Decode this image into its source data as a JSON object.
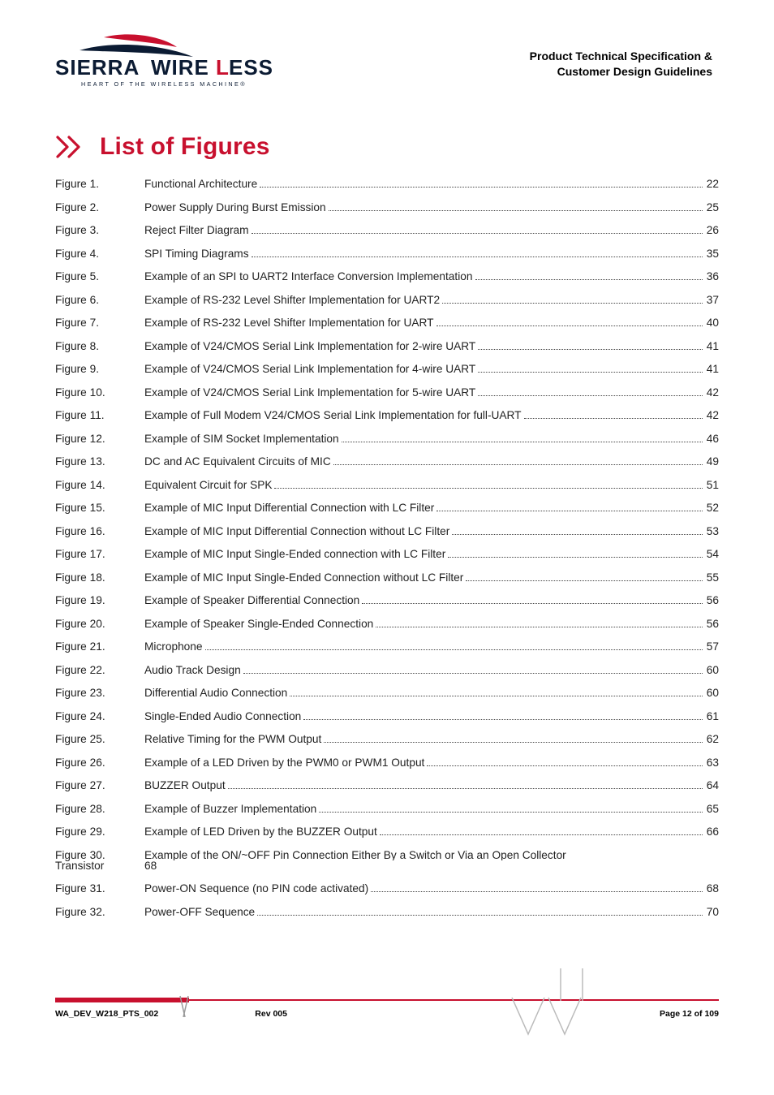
{
  "colors": {
    "accent": "#c8102e",
    "text": "#222222",
    "bg": "#ffffff"
  },
  "header": {
    "brand_top": "SIERRA WIRELESS",
    "brand_tag": "HEART OF THE WIRELESS MACHINE®",
    "right_line1": "Product Technical Specification &",
    "right_line2": "Customer Design Guidelines"
  },
  "title": "List of Figures",
  "figures": [
    {
      "label": "Figure 1.",
      "desc": "Functional Architecture",
      "page": "22"
    },
    {
      "label": "Figure 2.",
      "desc": "Power Supply During Burst Emission",
      "page": "25"
    },
    {
      "label": "Figure 3.",
      "desc": "Reject Filter Diagram",
      "page": "26"
    },
    {
      "label": "Figure 4.",
      "desc": "SPI Timing Diagrams",
      "page": "35"
    },
    {
      "label": "Figure 5.",
      "desc": "Example of an SPI to UART2 Interface Conversion Implementation",
      "page": "36"
    },
    {
      "label": "Figure 6.",
      "desc": "Example of RS-232 Level Shifter Implementation for UART2",
      "page": "37"
    },
    {
      "label": "Figure 7.",
      "desc": "Example of RS-232 Level Shifter Implementation for UART",
      "page": "40"
    },
    {
      "label": "Figure 8.",
      "desc": "Example of V24/CMOS Serial Link Implementation for 2-wire UART",
      "page": "41"
    },
    {
      "label": "Figure 9.",
      "desc": "Example of V24/CMOS Serial Link Implementation for 4-wire UART",
      "page": "41"
    },
    {
      "label": "Figure 10.",
      "desc": "Example of V24/CMOS Serial Link Implementation for 5-wire UART",
      "page": "42"
    },
    {
      "label": "Figure 11.",
      "desc": "Example of Full Modem V24/CMOS Serial Link Implementation for full-UART",
      "page": "42"
    },
    {
      "label": "Figure 12.",
      "desc": "Example of SIM Socket Implementation",
      "page": "46"
    },
    {
      "label": "Figure 13.",
      "desc": "DC and AC Equivalent Circuits of MIC",
      "page": "49"
    },
    {
      "label": "Figure 14.",
      "desc": "Equivalent Circuit for SPK",
      "page": "51"
    },
    {
      "label": "Figure 15.",
      "desc": "Example of MIC Input Differential Connection with LC Filter",
      "page": "52"
    },
    {
      "label": "Figure 16.",
      "desc": "Example of MIC Input Differential Connection without LC Filter",
      "page": "53"
    },
    {
      "label": "Figure 17.",
      "desc": "Example of MIC Input Single-Ended connection with LC Filter",
      "page": "54"
    },
    {
      "label": "Figure 18.",
      "desc": "Example of MIC Input Single-Ended Connection without LC Filter",
      "page": "55"
    },
    {
      "label": "Figure 19.",
      "desc": "Example of Speaker Differential Connection",
      "page": "56"
    },
    {
      "label": "Figure 20.",
      "desc": "Example of Speaker Single-Ended Connection",
      "page": "56"
    },
    {
      "label": "Figure 21.",
      "desc": "Microphone",
      "page": "57"
    },
    {
      "label": "Figure 22.",
      "desc": "Audio Track Design",
      "page": "60"
    },
    {
      "label": "Figure 23.",
      "desc": "Differential Audio Connection",
      "page": "60"
    },
    {
      "label": "Figure 24.",
      "desc": "Single-Ended Audio Connection",
      "page": "61"
    },
    {
      "label": "Figure 25.",
      "desc": "Relative Timing for the PWM Output",
      "page": "62"
    },
    {
      "label": "Figure 26.",
      "desc": "Example of a LED Driven by the PWM0 or PWM1 Output",
      "page": "63"
    },
    {
      "label": "Figure 27.",
      "desc": "BUZZER Output",
      "page": "64"
    },
    {
      "label": "Figure 28.",
      "desc": "Example of Buzzer Implementation",
      "page": "65"
    },
    {
      "label": "Figure 29.",
      "desc": "Example of LED Driven by the BUZZER Output",
      "page": "66"
    },
    {
      "label": "Figure 30.",
      "desc": "Example of the ON/~OFF Pin Connection Either By a Switch or Via an Open Collector",
      "label2": "Transistor",
      "desc2": "68",
      "page": null,
      "twoline": true
    },
    {
      "label": "Figure 31.",
      "desc": "Power-ON Sequence (no PIN code activated)",
      "page": "68"
    },
    {
      "label": "Figure 32.",
      "desc": "Power-OFF Sequence",
      "page": "70"
    }
  ],
  "footer": {
    "left": "WA_DEV_W218_PTS_002",
    "center": "Rev 005",
    "right": "Page 12 of 109"
  }
}
